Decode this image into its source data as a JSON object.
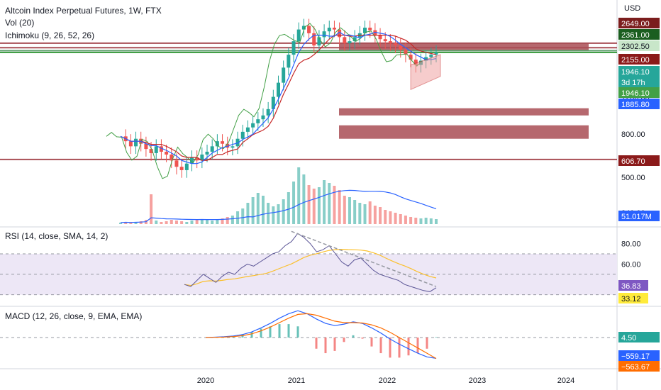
{
  "header": {
    "title": "Altcoin Index Perpetual Futures, 1W, FTX",
    "volume": "Vol (20)",
    "ichimoku": "Ichimoku (9, 26, 52, 26)",
    "rsi": "RSI (14, close, SMA, 14, 2)",
    "macd": "MACD (12, 26, close, 9, EMA, EMA)"
  },
  "currency": "USD",
  "colors": {
    "up": "#26a69a",
    "down": "#ef5350",
    "resistance": "#a94e55",
    "support": "#5f9e6e",
    "volume_ma": "#2962ff",
    "rsi_line": "#5b5596",
    "rsi_band": "#ede7f6",
    "macd": "#2962ff",
    "signal": "#ff6d00"
  },
  "chart_data": [
    {
      "type": "line",
      "panel": "price",
      "title": "Altcoin Index Perpetual Futures, 1W, FTX",
      "y_ticks": [
        "1200.00",
        "800.00",
        "500.00",
        "340.00"
      ],
      "x_ticks": [
        "2020",
        "2021",
        "2022",
        "2023",
        "2024"
      ],
      "price_tags": [
        {
          "value": "2649.00",
          "color": "#7b1d1d"
        },
        {
          "value": "2361.00",
          "color": "#1b5e20"
        },
        {
          "value": "2302.50",
          "color": "#c8e6c9"
        },
        {
          "value": "2155.00",
          "color": "#8b1a1a"
        },
        {
          "value": "1946.10",
          "color": "#26a69a"
        },
        {
          "value": "3d 17h",
          "color": "#26a69a"
        },
        {
          "value": "1946.10",
          "color": "#43a047"
        },
        {
          "value": "1885.80",
          "color": "#2962ff"
        },
        {
          "value": "606.70",
          "color": "#8b1a1a"
        }
      ],
      "horizontal_levels": [
        {
          "price": 2155,
          "color": "#a94e55"
        },
        {
          "price": 2050,
          "color": "#a94e55"
        },
        {
          "price": 1985,
          "color": "#5f9e6e"
        },
        {
          "price": 1946.1,
          "color": "#43a047"
        },
        {
          "price": 606.7,
          "color": "#a94e55"
        }
      ],
      "zones": [
        {
          "from": 2155,
          "to": 2000
        },
        {
          "from": 1060,
          "to": 980
        },
        {
          "from": 880,
          "to": 760
        }
      ],
      "series": [
        {
          "close": [
            780,
            740,
            700,
            760,
            720,
            680,
            650,
            700,
            660,
            640,
            600,
            560,
            540,
            580,
            620,
            600,
            640,
            660,
            700,
            740,
            720,
            690,
            700,
            760,
            820,
            860,
            900,
            940,
            980,
            1050,
            1200,
            1400,
            1650,
            1900,
            2200,
            2500,
            2600,
            2400,
            2100,
            2300,
            2450,
            2550,
            2500,
            2300,
            2150,
            2200,
            2300,
            2400,
            2550,
            2480,
            2350,
            2250,
            2200,
            2150,
            2100,
            2000,
            1900,
            1800,
            1700,
            1780,
            1850,
            1900,
            1946.1
          ]
        }
      ]
    },
    {
      "type": "bar",
      "panel": "volume",
      "series": [
        {
          "name": "Vol (20)",
          "values": [
            2,
            3,
            2,
            3,
            4,
            6,
            42,
            5,
            3,
            4,
            6,
            5,
            4,
            3,
            5,
            6,
            7,
            6,
            5,
            6,
            8,
            10,
            12,
            18,
            22,
            30,
            38,
            44,
            40,
            30,
            25,
            28,
            35,
            45,
            60,
            80,
            70,
            55,
            50,
            52,
            62,
            58,
            54,
            48,
            40,
            38,
            34,
            30,
            28,
            32,
            26,
            24,
            20,
            18,
            16,
            14,
            12,
            10,
            9,
            8,
            9,
            8,
            7
          ]
        }
      ],
      "ma_label": "51.017M"
    },
    {
      "type": "line",
      "panel": "rsi",
      "title": "RSI (14, close, SMA, 14, 2)",
      "y_ticks": [
        "80.00",
        "60.00"
      ],
      "band": [
        30,
        70
      ],
      "series": [
        {
          "name": "RSI",
          "values": [
            40,
            38,
            44,
            50,
            46,
            42,
            48,
            52,
            50,
            56,
            60,
            58,
            62,
            66,
            70,
            72,
            78,
            82,
            90,
            86,
            80,
            72,
            74,
            78,
            70,
            62,
            58,
            64,
            66,
            60,
            54,
            50,
            48,
            46,
            44,
            40,
            38,
            36,
            34,
            33,
            36.83
          ]
        }
      ],
      "tags": [
        {
          "value": "36.83",
          "color": "#7e57c2"
        },
        {
          "value": "33.12",
          "color": "#ffeb3b"
        }
      ]
    },
    {
      "type": "line",
      "panel": "macd",
      "title": "MACD (12, 26, close, 9, EMA, EMA)",
      "series": [
        {
          "name": "MACD",
          "values": [
            0,
            10,
            20,
            40,
            80,
            150,
            260,
            380,
            520,
            640,
            720,
            640,
            500,
            380,
            320,
            360,
            420,
            380,
            260,
            120,
            -40,
            -180,
            -300,
            -420,
            -520,
            -559.17
          ]
        },
        {
          "name": "Signal",
          "values": [
            0,
            5,
            12,
            25,
            50,
            100,
            180,
            280,
            400,
            520,
            620,
            640,
            600,
            520,
            440,
            400,
            400,
            390,
            340,
            260,
            140,
            0,
            -140,
            -280,
            -420,
            -563.67
          ]
        }
      ],
      "tags": [
        {
          "value": "4.50",
          "color": "#26a69a"
        },
        {
          "value": "−559.17",
          "color": "#2962ff"
        },
        {
          "value": "−563.67",
          "color": "#ff6d00"
        }
      ]
    }
  ]
}
